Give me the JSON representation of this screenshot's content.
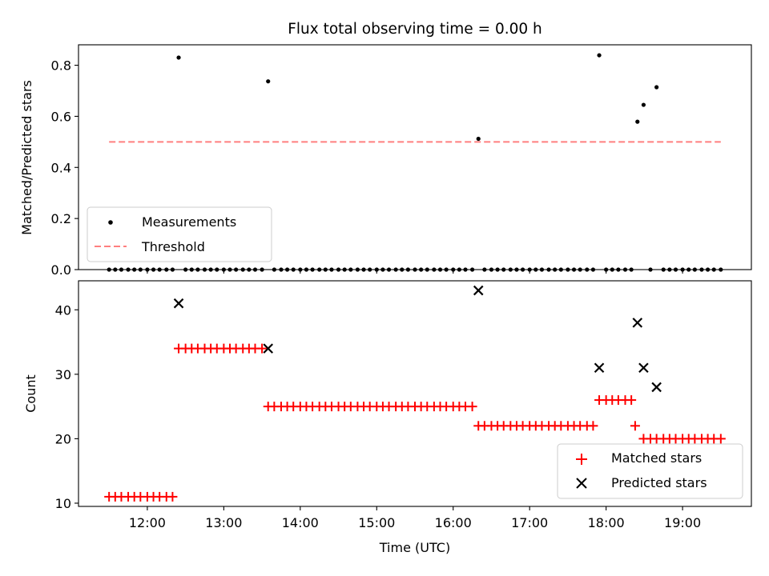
{
  "chart_data": [
    {
      "type": "scatter",
      "title": "Flux total observing time = 0.00 h",
      "ylabel": "Matched/Predicted stars",
      "ylim": [
        0,
        0.88
      ],
      "yticks": [
        "0.0",
        "0.2",
        "0.4",
        "0.6",
        "0.8"
      ],
      "xlim": [
        11.1,
        19.9
      ],
      "grid": false,
      "legend_position": "lower-left",
      "series": [
        {
          "name": "Measurements",
          "style": "dot",
          "color": "#000000",
          "points": [
            [
              11.5,
              0
            ],
            [
              11.58,
              0
            ],
            [
              11.66,
              0
            ],
            [
              11.75,
              0
            ],
            [
              11.83,
              0
            ],
            [
              11.91,
              0
            ],
            [
              12.0,
              0
            ],
            [
              12.08,
              0
            ],
            [
              12.16,
              0
            ],
            [
              12.25,
              0
            ],
            [
              12.33,
              0
            ],
            [
              12.41,
              0.83
            ],
            [
              12.5,
              0
            ],
            [
              12.58,
              0
            ],
            [
              12.66,
              0
            ],
            [
              12.75,
              0
            ],
            [
              12.83,
              0
            ],
            [
              12.91,
              0
            ],
            [
              13.0,
              0
            ],
            [
              13.08,
              0
            ],
            [
              13.16,
              0
            ],
            [
              13.25,
              0
            ],
            [
              13.33,
              0
            ],
            [
              13.41,
              0
            ],
            [
              13.5,
              0
            ],
            [
              13.58,
              0.737
            ],
            [
              13.66,
              0
            ],
            [
              13.75,
              0
            ],
            [
              13.83,
              0
            ],
            [
              13.91,
              0
            ],
            [
              14.0,
              0
            ],
            [
              14.08,
              0
            ],
            [
              14.16,
              0
            ],
            [
              14.25,
              0
            ],
            [
              14.33,
              0
            ],
            [
              14.41,
              0
            ],
            [
              14.5,
              0
            ],
            [
              14.58,
              0
            ],
            [
              14.66,
              0
            ],
            [
              14.75,
              0
            ],
            [
              14.83,
              0
            ],
            [
              14.91,
              0
            ],
            [
              15.0,
              0
            ],
            [
              15.08,
              0
            ],
            [
              15.16,
              0
            ],
            [
              15.25,
              0
            ],
            [
              15.33,
              0
            ],
            [
              15.41,
              0
            ],
            [
              15.5,
              0
            ],
            [
              15.58,
              0
            ],
            [
              15.66,
              0
            ],
            [
              15.75,
              0
            ],
            [
              15.83,
              0
            ],
            [
              15.91,
              0
            ],
            [
              16.0,
              0
            ],
            [
              16.08,
              0
            ],
            [
              16.16,
              0
            ],
            [
              16.25,
              0
            ],
            [
              16.33,
              0.512
            ],
            [
              16.41,
              0
            ],
            [
              16.5,
              0
            ],
            [
              16.58,
              0
            ],
            [
              16.66,
              0
            ],
            [
              16.75,
              0
            ],
            [
              16.83,
              0
            ],
            [
              16.91,
              0
            ],
            [
              17.0,
              0
            ],
            [
              17.08,
              0
            ],
            [
              17.16,
              0
            ],
            [
              17.25,
              0
            ],
            [
              17.33,
              0
            ],
            [
              17.41,
              0
            ],
            [
              17.5,
              0
            ],
            [
              17.58,
              0
            ],
            [
              17.66,
              0
            ],
            [
              17.75,
              0
            ],
            [
              17.83,
              0
            ],
            [
              17.91,
              0.839
            ],
            [
              18.0,
              0
            ],
            [
              18.08,
              0
            ],
            [
              18.16,
              0
            ],
            [
              18.25,
              0
            ],
            [
              18.33,
              0
            ],
            [
              18.41,
              0.579
            ],
            [
              18.49,
              0.645
            ],
            [
              18.58,
              0
            ],
            [
              18.66,
              0.714
            ],
            [
              18.75,
              0
            ],
            [
              18.83,
              0
            ],
            [
              18.91,
              0
            ],
            [
              19.0,
              0
            ],
            [
              19.08,
              0
            ],
            [
              19.16,
              0
            ],
            [
              19.25,
              0
            ],
            [
              19.33,
              0
            ],
            [
              19.41,
              0
            ],
            [
              19.5,
              0
            ]
          ]
        },
        {
          "name": "Threshold",
          "style": "dashed-line",
          "color": "#ff7f7f",
          "points": [
            [
              11.5,
              0.5
            ],
            [
              19.5,
              0.5
            ]
          ]
        }
      ]
    },
    {
      "type": "scatter",
      "xlabel": "Time (UTC)",
      "ylabel": "Count",
      "ylim": [
        9.5,
        44.5
      ],
      "yticks": [
        "10",
        "20",
        "30",
        "40"
      ],
      "xlim": [
        11.1,
        19.9
      ],
      "xticks": [
        {
          "value": 12,
          "label": "12:00"
        },
        {
          "value": 13,
          "label": "13:00"
        },
        {
          "value": 14,
          "label": "14:00"
        },
        {
          "value": 15,
          "label": "15:00"
        },
        {
          "value": 16,
          "label": "16:00"
        },
        {
          "value": 17,
          "label": "17:00"
        },
        {
          "value": 18,
          "label": "18:00"
        },
        {
          "value": 19,
          "label": "19:00"
        }
      ],
      "grid": false,
      "legend_position": "lower-right",
      "series": [
        {
          "name": "Matched stars",
          "style": "plus",
          "color": "#ff0000",
          "points": [
            [
              11.5,
              11
            ],
            [
              11.58,
              11
            ],
            [
              11.66,
              11
            ],
            [
              11.75,
              11
            ],
            [
              11.83,
              11
            ],
            [
              11.91,
              11
            ],
            [
              12.0,
              11
            ],
            [
              12.08,
              11
            ],
            [
              12.16,
              11
            ],
            [
              12.25,
              11
            ],
            [
              12.33,
              11
            ],
            [
              12.41,
              34
            ],
            [
              12.5,
              34
            ],
            [
              12.58,
              34
            ],
            [
              12.66,
              34
            ],
            [
              12.75,
              34
            ],
            [
              12.83,
              34
            ],
            [
              12.91,
              34
            ],
            [
              13.0,
              34
            ],
            [
              13.08,
              34
            ],
            [
              13.16,
              34
            ],
            [
              13.25,
              34
            ],
            [
              13.33,
              34
            ],
            [
              13.41,
              34
            ],
            [
              13.5,
              34
            ],
            [
              13.58,
              25
            ],
            [
              13.66,
              25
            ],
            [
              13.75,
              25
            ],
            [
              13.83,
              25
            ],
            [
              13.91,
              25
            ],
            [
              14.0,
              25
            ],
            [
              14.08,
              25
            ],
            [
              14.16,
              25
            ],
            [
              14.25,
              25
            ],
            [
              14.33,
              25
            ],
            [
              14.41,
              25
            ],
            [
              14.5,
              25
            ],
            [
              14.58,
              25
            ],
            [
              14.66,
              25
            ],
            [
              14.75,
              25
            ],
            [
              14.83,
              25
            ],
            [
              14.91,
              25
            ],
            [
              15.0,
              25
            ],
            [
              15.08,
              25
            ],
            [
              15.16,
              25
            ],
            [
              15.25,
              25
            ],
            [
              15.33,
              25
            ],
            [
              15.41,
              25
            ],
            [
              15.5,
              25
            ],
            [
              15.58,
              25
            ],
            [
              15.66,
              25
            ],
            [
              15.75,
              25
            ],
            [
              15.83,
              25
            ],
            [
              15.91,
              25
            ],
            [
              16.0,
              25
            ],
            [
              16.08,
              25
            ],
            [
              16.16,
              25
            ],
            [
              16.25,
              25
            ],
            [
              16.33,
              22
            ],
            [
              16.41,
              22
            ],
            [
              16.5,
              22
            ],
            [
              16.58,
              22
            ],
            [
              16.66,
              22
            ],
            [
              16.75,
              22
            ],
            [
              16.83,
              22
            ],
            [
              16.91,
              22
            ],
            [
              17.0,
              22
            ],
            [
              17.08,
              22
            ],
            [
              17.16,
              22
            ],
            [
              17.25,
              22
            ],
            [
              17.33,
              22
            ],
            [
              17.41,
              22
            ],
            [
              17.5,
              22
            ],
            [
              17.58,
              22
            ],
            [
              17.66,
              22
            ],
            [
              17.75,
              22
            ],
            [
              17.83,
              22
            ],
            [
              17.91,
              26
            ],
            [
              18.0,
              26
            ],
            [
              18.08,
              26
            ],
            [
              18.16,
              26
            ],
            [
              18.25,
              26
            ],
            [
              18.33,
              26
            ],
            [
              18.38,
              22
            ],
            [
              18.49,
              20
            ],
            [
              18.58,
              20
            ],
            [
              18.66,
              20
            ],
            [
              18.75,
              20
            ],
            [
              18.83,
              20
            ],
            [
              18.91,
              20
            ],
            [
              19.0,
              20
            ],
            [
              19.08,
              20
            ],
            [
              19.16,
              20
            ],
            [
              19.25,
              20
            ],
            [
              19.33,
              20
            ],
            [
              19.41,
              20
            ],
            [
              19.5,
              20
            ]
          ]
        },
        {
          "name": "Predicted stars",
          "style": "x",
          "color": "#000000",
          "points": [
            [
              12.41,
              41
            ],
            [
              13.58,
              34
            ],
            [
              16.33,
              43
            ],
            [
              17.91,
              31
            ],
            [
              18.41,
              38
            ],
            [
              18.49,
              31
            ],
            [
              18.66,
              28
            ]
          ]
        }
      ]
    }
  ]
}
